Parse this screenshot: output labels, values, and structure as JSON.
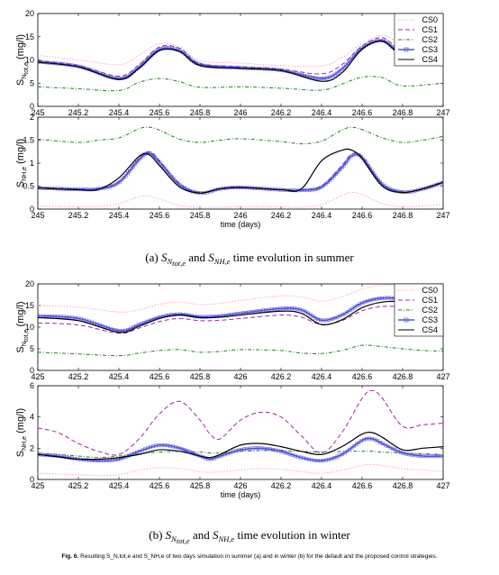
{
  "chart_data": [
    {
      "type": "line",
      "panel": "(a) summer, S_N,tot,e",
      "xlim": [
        245,
        247
      ],
      "ylim": [
        0,
        20
      ],
      "ylabel": "S",
      "ylabel_sub": "N",
      "ylabel_subsub": "tot,e",
      "ylabel_unit": "(mg/l)",
      "yticks": [
        "0",
        "5",
        "10",
        "15",
        "20"
      ],
      "xticks": [
        "245",
        "245.2",
        "245.4",
        "245.6",
        "245.8",
        "246",
        "246.2",
        "246.4",
        "246.6",
        "246.8",
        "247"
      ],
      "xlabel": "",
      "legend": "top-right",
      "x": [
        245,
        245.2,
        245.4,
        245.5,
        245.6,
        245.7,
        245.8,
        246,
        246.2,
        246.4,
        246.5,
        246.6,
        246.7,
        246.8,
        247
      ],
      "series": [
        {
          "name": "CS0",
          "color": "#ff8fb8",
          "dash": "1.2,2",
          "values": [
            11.0,
            10.0,
            9.0,
            11.0,
            13.5,
            12.8,
            9.8,
            9.3,
            8.8,
            8.7,
            10.5,
            13.5,
            15.3,
            13.5,
            11.5
          ]
        },
        {
          "name": "CS1",
          "color": "#9b2a9b",
          "dash": "5,3",
          "values": [
            9.8,
            8.8,
            6.5,
            9.0,
            12.8,
            12.5,
            9.2,
            8.5,
            8.0,
            7.0,
            9.0,
            13.0,
            14.8,
            12.0,
            11.2
          ]
        },
        {
          "name": "CS2",
          "color": "#1f7f1f",
          "dash": "4,2,1,2",
          "values": [
            4.2,
            3.8,
            3.4,
            5.2,
            6.0,
            5.3,
            4.1,
            4.2,
            3.9,
            3.5,
            4.8,
            6.3,
            6.2,
            4.4,
            5.0
          ]
        },
        {
          "name": "CS3",
          "color": "#5050e0",
          "marker": "square",
          "values": [
            9.6,
            8.6,
            6.0,
            8.5,
            12.3,
            12.0,
            9.0,
            8.3,
            7.8,
            6.0,
            8.0,
            12.6,
            14.2,
            11.5,
            11.0
          ]
        },
        {
          "name": "CS4",
          "color": "#000000",
          "values": [
            9.5,
            8.5,
            5.8,
            8.2,
            12.0,
            11.8,
            8.8,
            8.2,
            7.7,
            5.4,
            7.2,
            12.3,
            14.0,
            11.3,
            11.0
          ]
        }
      ]
    },
    {
      "type": "line",
      "panel": "(a) summer, S_NH,e",
      "xlim": [
        245,
        247
      ],
      "ylim": [
        0,
        2
      ],
      "ylabel": "S",
      "ylabel_sub": "NH,e",
      "ylabel_unit": "(mg/l)",
      "yticks": [
        "0",
        "0.5",
        "1",
        "1.5",
        "2"
      ],
      "xticks": [
        "245",
        "245.2",
        "245.4",
        "245.6",
        "245.8",
        "246",
        "246.2",
        "246.4",
        "246.6",
        "246.8",
        "247"
      ],
      "xlabel": "time (days)",
      "x": [
        245,
        245.2,
        245.3,
        245.4,
        245.5,
        245.55,
        245.6,
        245.7,
        245.8,
        245.9,
        246,
        246.2,
        246.3,
        246.4,
        246.5,
        246.55,
        246.6,
        246.7,
        246.8,
        246.9,
        247
      ],
      "series": [
        {
          "name": "CS0",
          "color": "#ff8fb8",
          "dash": "1.2,2",
          "values": [
            0.07,
            0.05,
            0.06,
            0.12,
            0.27,
            0.28,
            0.22,
            0.08,
            0.04,
            0.04,
            0.05,
            0.05,
            0.04,
            0.1,
            0.3,
            0.36,
            0.32,
            0.12,
            0.05,
            0.07,
            0.1
          ]
        },
        {
          "name": "CS1",
          "color": "#9b2a9b",
          "dash": "5,3",
          "values": [
            0.47,
            0.44,
            0.45,
            0.6,
            1.1,
            1.25,
            1.05,
            0.55,
            0.36,
            0.45,
            0.48,
            0.43,
            0.42,
            0.5,
            0.95,
            1.2,
            1.15,
            0.55,
            0.38,
            0.45,
            0.6
          ]
        },
        {
          "name": "CS2",
          "color": "#1f7f1f",
          "dash": "4,2,1,2",
          "values": [
            1.52,
            1.45,
            1.5,
            1.55,
            1.75,
            1.78,
            1.72,
            1.52,
            1.45,
            1.5,
            1.53,
            1.47,
            1.42,
            1.48,
            1.72,
            1.78,
            1.73,
            1.55,
            1.45,
            1.5,
            1.58
          ]
        },
        {
          "name": "CS3",
          "color": "#5050e0",
          "marker": "square",
          "values": [
            0.46,
            0.43,
            0.44,
            0.58,
            1.08,
            1.22,
            1.02,
            0.53,
            0.35,
            0.44,
            0.47,
            0.42,
            0.41,
            0.48,
            0.9,
            1.16,
            1.12,
            0.54,
            0.37,
            0.44,
            0.58
          ]
        },
        {
          "name": "CS4",
          "color": "#000000",
          "values": [
            0.46,
            0.42,
            0.43,
            0.68,
            1.15,
            1.18,
            0.95,
            0.48,
            0.35,
            0.44,
            0.47,
            0.42,
            0.44,
            1.05,
            1.28,
            1.28,
            1.1,
            0.5,
            0.36,
            0.44,
            0.58
          ]
        }
      ]
    },
    {
      "type": "line",
      "panel": "(b) winter, S_N,tot,e",
      "xlim": [
        425,
        427
      ],
      "ylim": [
        0,
        20
      ],
      "ylabel": "S",
      "ylabel_sub": "N",
      "ylabel_subsub": "tot,e",
      "ylabel_unit": "(mg/l)",
      "yticks": [
        "0",
        "5",
        "10",
        "15",
        "20"
      ],
      "xticks": [
        "425",
        "425.2",
        "425.4",
        "425.6",
        "425.8",
        "426",
        "426.2",
        "426.4",
        "426.6",
        "426.8",
        "427"
      ],
      "xlabel": "",
      "legend": "top-right",
      "x": [
        425,
        425.2,
        425.4,
        425.5,
        425.6,
        425.7,
        425.8,
        425.9,
        426,
        426.2,
        426.3,
        426.4,
        426.5,
        426.6,
        426.7,
        426.8,
        426.9,
        427
      ],
      "series": [
        {
          "name": "CS0",
          "color": "#ff8fb8",
          "dash": "1.2,2",
          "values": [
            15.0,
            14.6,
            13.5,
            14.0,
            15.3,
            15.8,
            15.2,
            15.5,
            16.2,
            17.2,
            17.0,
            16.0,
            17.0,
            18.8,
            19.7,
            19.5,
            18.5,
            17.5
          ]
        },
        {
          "name": "CS1",
          "color": "#9b2a9b",
          "dash": "5,3",
          "values": [
            11.0,
            10.5,
            8.6,
            9.8,
            11.3,
            12.0,
            11.5,
            11.6,
            12.0,
            12.8,
            12.3,
            10.6,
            11.5,
            13.8,
            14.8,
            14.6,
            13.5,
            12.8
          ]
        },
        {
          "name": "CS2",
          "color": "#1f7f1f",
          "dash": "4,2,1,2",
          "values": [
            4.2,
            3.8,
            3.4,
            4.0,
            4.6,
            4.8,
            4.2,
            4.4,
            4.8,
            4.6,
            4.0,
            3.9,
            4.6,
            5.8,
            5.5,
            5.0,
            4.6,
            4.5
          ]
        },
        {
          "name": "CS3",
          "color": "#5050e0",
          "marker": "square",
          "values": [
            12.6,
            12.0,
            9.2,
            10.6,
            12.3,
            13.0,
            12.4,
            12.6,
            13.2,
            14.3,
            14.0,
            11.6,
            12.8,
            15.6,
            16.7,
            16.5,
            15.3,
            14.5
          ]
        },
        {
          "name": "CS4",
          "color": "#000000",
          "values": [
            12.2,
            11.5,
            8.8,
            10.2,
            12.0,
            12.8,
            12.2,
            12.3,
            12.8,
            13.7,
            13.2,
            10.6,
            11.7,
            14.5,
            15.8,
            15.8,
            14.6,
            13.3
          ]
        }
      ]
    },
    {
      "type": "line",
      "panel": "(b) winter, S_NH,e",
      "xlim": [
        425,
        427
      ],
      "ylim": [
        0,
        6
      ],
      "ylabel": "S",
      "ylabel_sub": "NH,e",
      "ylabel_unit": "(mg/l)",
      "yticks": [
        "0",
        "2",
        "4",
        "6"
      ],
      "xticks": [
        "425",
        "425.2",
        "425.4",
        "425.6",
        "425.8",
        "426",
        "426.2",
        "426.4",
        "426.6",
        "426.8",
        "427"
      ],
      "xlabel": "time (days)",
      "x": [
        425,
        425.1,
        425.2,
        425.3,
        425.4,
        425.5,
        425.6,
        425.7,
        425.8,
        425.85,
        425.9,
        426,
        426.1,
        426.2,
        426.3,
        426.4,
        426.5,
        426.6,
        426.65,
        426.7,
        426.8,
        426.9,
        427
      ],
      "series": [
        {
          "name": "CS0",
          "color": "#ff8fb8",
          "dash": "1.2,2",
          "values": [
            0.4,
            0.35,
            0.3,
            0.25,
            0.3,
            0.6,
            0.75,
            0.7,
            0.5,
            0.45,
            0.5,
            0.6,
            0.7,
            0.65,
            0.5,
            0.4,
            0.6,
            0.9,
            0.95,
            0.9,
            0.7,
            0.6,
            0.5
          ]
        },
        {
          "name": "CS1",
          "color": "#9b2a9b",
          "dash": "5,3",
          "values": [
            3.3,
            3.0,
            2.3,
            1.8,
            1.6,
            2.6,
            4.2,
            5.0,
            3.8,
            2.9,
            2.6,
            3.8,
            4.3,
            4.0,
            2.8,
            1.7,
            3.0,
            5.2,
            5.7,
            5.2,
            3.4,
            3.5,
            3.6
          ]
        },
        {
          "name": "CS2",
          "color": "#1f7f1f",
          "dash": "4,2,1,2",
          "values": [
            1.7,
            1.6,
            1.5,
            1.4,
            1.5,
            1.65,
            1.75,
            1.8,
            1.75,
            1.7,
            1.7,
            1.8,
            1.85,
            1.85,
            1.8,
            1.75,
            1.8,
            1.8,
            1.8,
            1.75,
            1.7,
            1.65,
            1.6
          ]
        },
        {
          "name": "CS3",
          "color": "#5050e0",
          "marker": "square",
          "values": [
            1.6,
            1.5,
            1.3,
            1.2,
            1.3,
            1.8,
            2.2,
            2.0,
            1.5,
            1.3,
            1.5,
            1.9,
            2.0,
            1.8,
            1.4,
            1.2,
            1.6,
            2.5,
            2.6,
            2.3,
            1.7,
            1.5,
            1.5
          ]
        },
        {
          "name": "CS4",
          "color": "#000000",
          "values": [
            1.6,
            1.45,
            1.3,
            1.3,
            1.4,
            1.6,
            1.9,
            1.8,
            1.5,
            1.4,
            1.6,
            2.2,
            2.3,
            2.1,
            1.8,
            1.6,
            2.1,
            2.9,
            3.0,
            2.7,
            1.9,
            2.0,
            2.1
          ]
        }
      ]
    }
  ],
  "caption_a": {
    "prefix": "(a)  ",
    "s1": "S",
    "s1_sub": "N",
    "s1_subsub": "tot,e",
    "mid": " and ",
    "s2": "S",
    "s2_sub": "NH,e",
    "suffix": " time evolution in summer"
  },
  "caption_b": {
    "prefix": "(b)  ",
    "s1": "S",
    "s1_sub": "N",
    "s1_subsub": "tot,e",
    "mid": " and ",
    "s2": "S",
    "s2_sub": "NH,e",
    "suffix": " time evolution in winter"
  },
  "fig_caption": {
    "label": "Fig. 6.",
    "text": "Resulting S_N,tot,e and S_NH,e of two days simulation in summer (a) and in winter (b) for the default and the proposed control strategies."
  }
}
